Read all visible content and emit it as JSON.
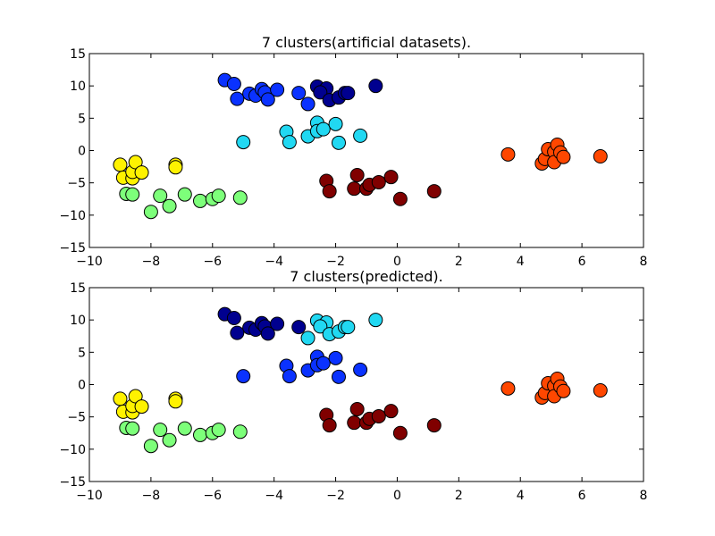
{
  "figure": {
    "background": "#ffffff"
  },
  "chart_data": [
    {
      "type": "scatter",
      "title": "7 clusters(artificial datasets).",
      "xlim": [
        -10,
        8
      ],
      "ylim": [
        -15,
        15
      ],
      "xticks": [
        "−10",
        "−8",
        "−6",
        "−4",
        "−2",
        "0",
        "2",
        "4",
        "6",
        "8"
      ],
      "yticks": [
        "15",
        "10",
        "5",
        "0",
        "−5",
        "−10",
        "−15"
      ],
      "grid": false,
      "marker_edge_color": "#000000",
      "series": [
        {
          "color": "#00008f",
          "points": [
            [
              -2.6,
              9.9
            ],
            [
              -2.3,
              9.6
            ],
            [
              -2.5,
              9.0
            ],
            [
              -2.2,
              7.8
            ],
            [
              -1.9,
              8.2
            ],
            [
              -1.7,
              8.9
            ],
            [
              -1.6,
              8.9
            ],
            [
              -0.7,
              10.0
            ]
          ]
        },
        {
          "color": "#0a32ff",
          "points": [
            [
              -5.6,
              10.9
            ],
            [
              -5.3,
              10.3
            ],
            [
              -4.8,
              8.8
            ],
            [
              -4.6,
              8.5
            ],
            [
              -4.4,
              9.5
            ],
            [
              -4.3,
              9.0
            ],
            [
              -4.2,
              7.9
            ],
            [
              -3.9,
              9.4
            ],
            [
              -5.2,
              8.0
            ],
            [
              -3.2,
              8.9
            ],
            [
              -2.9,
              7.2
            ]
          ]
        },
        {
          "color": "#21d8f2",
          "points": [
            [
              -5.0,
              1.3
            ],
            [
              -3.6,
              2.9
            ],
            [
              -3.5,
              1.3
            ],
            [
              -2.9,
              2.2
            ],
            [
              -2.6,
              4.3
            ],
            [
              -2.6,
              3.0
            ],
            [
              -2.4,
              3.3
            ],
            [
              -2.0,
              4.1
            ],
            [
              -1.9,
              1.2
            ],
            [
              -1.2,
              2.3
            ]
          ]
        },
        {
          "color": "#fff200",
          "points": [
            [
              -9.0,
              -2.2
            ],
            [
              -8.9,
              -4.2
            ],
            [
              -8.6,
              -4.3
            ],
            [
              -8.6,
              -3.3
            ],
            [
              -8.5,
              -1.8
            ],
            [
              -8.3,
              -3.4
            ],
            [
              -7.2,
              -2.2
            ],
            [
              -7.2,
              -2.6
            ]
          ]
        },
        {
          "color": "#7dff7a",
          "points": [
            [
              -8.8,
              -6.7
            ],
            [
              -8.6,
              -6.8
            ],
            [
              -8.0,
              -9.5
            ],
            [
              -7.7,
              -7.0
            ],
            [
              -7.4,
              -8.6
            ],
            [
              -6.9,
              -6.8
            ],
            [
              -6.4,
              -7.8
            ],
            [
              -6.0,
              -7.5
            ],
            [
              -5.8,
              -7.0
            ],
            [
              -5.1,
              -7.3
            ]
          ]
        },
        {
          "color": "#ff4700",
          "points": [
            [
              3.6,
              -0.6
            ],
            [
              4.7,
              -2.0
            ],
            [
              4.8,
              -1.3
            ],
            [
              4.9,
              0.2
            ],
            [
              5.1,
              -0.2
            ],
            [
              5.1,
              -1.8
            ],
            [
              5.2,
              0.9
            ],
            [
              5.3,
              -0.3
            ],
            [
              5.4,
              -1.0
            ],
            [
              6.6,
              -0.9
            ]
          ]
        },
        {
          "color": "#800000",
          "points": [
            [
              -2.3,
              -4.7
            ],
            [
              -2.2,
              -6.3
            ],
            [
              -1.4,
              -5.9
            ],
            [
              -1.3,
              -3.8
            ],
            [
              -1.0,
              -5.9
            ],
            [
              -0.9,
              -5.3
            ],
            [
              -0.6,
              -4.9
            ],
            [
              -0.2,
              -4.1
            ],
            [
              0.1,
              -7.5
            ],
            [
              1.2,
              -6.3
            ]
          ]
        }
      ]
    },
    {
      "type": "scatter",
      "title": "7 clusters(predicted).",
      "xlim": [
        -10,
        8
      ],
      "ylim": [
        -15,
        15
      ],
      "xticks": [
        "−10",
        "−8",
        "−6",
        "−4",
        "−2",
        "0",
        "2",
        "4",
        "6",
        "8"
      ],
      "yticks": [
        "15",
        "10",
        "5",
        "0",
        "−5",
        "−10",
        "−15"
      ],
      "grid": false,
      "marker_edge_color": "#000000",
      "series": [
        {
          "color": "#00008f",
          "points": [
            [
              -5.6,
              10.9
            ],
            [
              -5.3,
              10.3
            ],
            [
              -4.8,
              8.8
            ],
            [
              -4.6,
              8.5
            ],
            [
              -4.4,
              9.5
            ],
            [
              -4.3,
              9.0
            ],
            [
              -4.2,
              7.9
            ],
            [
              -3.9,
              9.4
            ],
            [
              -5.2,
              8.0
            ],
            [
              -3.2,
              8.9
            ]
          ]
        },
        {
          "color": "#21d8f2",
          "points": [
            [
              -2.6,
              9.9
            ],
            [
              -2.3,
              9.6
            ],
            [
              -2.5,
              9.0
            ],
            [
              -2.2,
              7.8
            ],
            [
              -1.9,
              8.2
            ],
            [
              -1.7,
              8.9
            ],
            [
              -1.6,
              8.9
            ],
            [
              -0.7,
              10.0
            ],
            [
              -2.9,
              7.2
            ]
          ]
        },
        {
          "color": "#0a32ff",
          "points": [
            [
              -5.0,
              1.3
            ],
            [
              -3.6,
              2.9
            ],
            [
              -3.5,
              1.3
            ],
            [
              -2.9,
              2.2
            ],
            [
              -2.6,
              4.3
            ],
            [
              -2.6,
              3.0
            ],
            [
              -2.4,
              3.3
            ],
            [
              -2.0,
              4.1
            ],
            [
              -1.9,
              1.2
            ],
            [
              -1.2,
              2.3
            ]
          ]
        },
        {
          "color": "#fff200",
          "points": [
            [
              -9.0,
              -2.2
            ],
            [
              -8.9,
              -4.2
            ],
            [
              -8.6,
              -4.3
            ],
            [
              -8.6,
              -3.3
            ],
            [
              -8.5,
              -1.8
            ],
            [
              -8.3,
              -3.4
            ],
            [
              -7.2,
              -2.2
            ],
            [
              -7.2,
              -2.6
            ]
          ]
        },
        {
          "color": "#7dff7a",
          "points": [
            [
              -8.8,
              -6.7
            ],
            [
              -8.6,
              -6.8
            ],
            [
              -8.0,
              -9.5
            ],
            [
              -7.7,
              -7.0
            ],
            [
              -7.4,
              -8.6
            ],
            [
              -6.9,
              -6.8
            ],
            [
              -6.4,
              -7.8
            ],
            [
              -6.0,
              -7.5
            ],
            [
              -5.8,
              -7.0
            ],
            [
              -5.1,
              -7.3
            ]
          ]
        },
        {
          "color": "#ff4700",
          "points": [
            [
              3.6,
              -0.6
            ],
            [
              4.7,
              -2.0
            ],
            [
              4.8,
              -1.3
            ],
            [
              4.9,
              0.2
            ],
            [
              5.1,
              -0.2
            ],
            [
              5.1,
              -1.8
            ],
            [
              5.2,
              0.9
            ],
            [
              5.3,
              -0.3
            ],
            [
              5.4,
              -1.0
            ],
            [
              6.6,
              -0.9
            ]
          ]
        },
        {
          "color": "#800000",
          "points": [
            [
              -2.3,
              -4.7
            ],
            [
              -2.2,
              -6.3
            ],
            [
              -1.4,
              -5.9
            ],
            [
              -1.3,
              -3.8
            ],
            [
              -1.0,
              -5.9
            ],
            [
              -0.9,
              -5.3
            ],
            [
              -0.6,
              -4.9
            ],
            [
              -0.2,
              -4.1
            ],
            [
              0.1,
              -7.5
            ],
            [
              1.2,
              -6.3
            ]
          ]
        }
      ]
    }
  ]
}
